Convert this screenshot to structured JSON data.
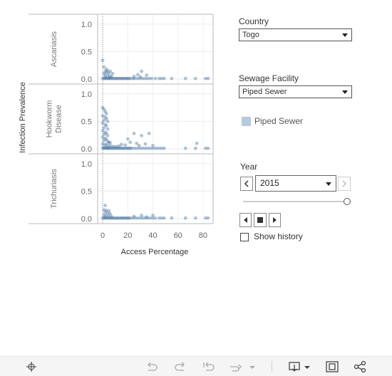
{
  "chart_data": {
    "type": "scatter",
    "xlabel": "Access Percentage",
    "ylabel": "Infection Prevalence",
    "xlim": [
      -4,
      88
    ],
    "ylim": [
      0,
      1.05
    ],
    "x_ticks": [
      "0",
      "20",
      "40",
      "60",
      "80"
    ],
    "x_tick_values": [
      0,
      20,
      40,
      60,
      80
    ],
    "y_ticks": [
      "0.0",
      "0.5",
      "1.0"
    ],
    "y_tick_values": [
      0,
      0.5,
      1.0
    ],
    "grid": true,
    "reference_line_x": 0,
    "point_color": "#4e79a7",
    "rows": [
      {
        "label_lines": [
          "Ascariasis"
        ],
        "points": [
          [
            0,
            0.34
          ],
          [
            1,
            0.22
          ],
          [
            3,
            0.18
          ],
          [
            2,
            0.14
          ],
          [
            4,
            0.15
          ],
          [
            6,
            0.14
          ],
          [
            3,
            0.12
          ],
          [
            1,
            0.1
          ],
          [
            5,
            0.1
          ],
          [
            8,
            0.1
          ],
          [
            2,
            0.07
          ],
          [
            4,
            0.06
          ],
          [
            7,
            0.05
          ],
          [
            6,
            0.04
          ],
          [
            2,
            0.03
          ],
          [
            5,
            0.02
          ],
          [
            0,
            0.01
          ],
          [
            1,
            0.01
          ],
          [
            2,
            0.01
          ],
          [
            3,
            0.01
          ],
          [
            4,
            0.01
          ],
          [
            5,
            0.01
          ],
          [
            6,
            0.01
          ],
          [
            7,
            0.01
          ],
          [
            8,
            0.01
          ],
          [
            9,
            0.01
          ],
          [
            10,
            0.01
          ],
          [
            11,
            0.01
          ],
          [
            12,
            0.01
          ],
          [
            13,
            0.01
          ],
          [
            14,
            0.01
          ],
          [
            15,
            0.01
          ],
          [
            16,
            0.01
          ],
          [
            17,
            0.01
          ],
          [
            18,
            0.01
          ],
          [
            19,
            0.01
          ],
          [
            20,
            0.01
          ],
          [
            21,
            0.01
          ],
          [
            22,
            0.01
          ],
          [
            24,
            0.01
          ],
          [
            25,
            0.01
          ],
          [
            27,
            0.01
          ],
          [
            29,
            0.01
          ],
          [
            31,
            0.01
          ],
          [
            33,
            0.01
          ],
          [
            35,
            0.01
          ],
          [
            37,
            0.01
          ],
          [
            39,
            0.01
          ],
          [
            42,
            0.01
          ],
          [
            45,
            0.01
          ],
          [
            47,
            0.01
          ],
          [
            49,
            0.01
          ],
          [
            55,
            0.01
          ],
          [
            66,
            0.01
          ],
          [
            74,
            0.01
          ],
          [
            82,
            0.01
          ],
          [
            84,
            0.01
          ],
          [
            25,
            0.05
          ],
          [
            31,
            0.14
          ],
          [
            28,
            0.08
          ],
          [
            35,
            0.07
          ],
          [
            30,
            0.04
          ]
        ]
      },
      {
        "label_lines": [
          "Hookworm",
          "Disease"
        ],
        "points": [
          [
            0,
            0.75
          ],
          [
            1,
            0.72
          ],
          [
            2,
            0.68
          ],
          [
            3,
            0.64
          ],
          [
            0,
            0.6
          ],
          [
            2,
            0.58
          ],
          [
            3,
            0.55
          ],
          [
            1,
            0.52
          ],
          [
            4,
            0.5
          ],
          [
            0,
            0.47
          ],
          [
            2,
            0.44
          ],
          [
            3,
            0.42
          ],
          [
            1,
            0.38
          ],
          [
            4,
            0.36
          ],
          [
            0,
            0.33
          ],
          [
            2,
            0.3
          ],
          [
            3,
            0.28
          ],
          [
            1,
            0.26
          ],
          [
            4,
            0.24
          ],
          [
            0,
            0.21
          ],
          [
            2,
            0.19
          ],
          [
            3,
            0.17
          ],
          [
            1,
            0.15
          ],
          [
            4,
            0.13
          ],
          [
            5,
            0.12
          ],
          [
            6,
            0.11
          ],
          [
            0,
            0.09
          ],
          [
            2,
            0.08
          ],
          [
            3,
            0.07
          ],
          [
            5,
            0.06
          ],
          [
            7,
            0.05
          ],
          [
            9,
            0.04
          ],
          [
            11,
            0.04
          ],
          [
            13,
            0.05
          ],
          [
            15,
            0.08
          ],
          [
            1,
            0.03
          ],
          [
            3,
            0.02
          ],
          [
            5,
            0.02
          ],
          [
            0,
            0.01
          ],
          [
            1,
            0.01
          ],
          [
            2,
            0.01
          ],
          [
            3,
            0.01
          ],
          [
            4,
            0.01
          ],
          [
            5,
            0.01
          ],
          [
            6,
            0.01
          ],
          [
            7,
            0.01
          ],
          [
            8,
            0.01
          ],
          [
            9,
            0.01
          ],
          [
            10,
            0.01
          ],
          [
            11,
            0.01
          ],
          [
            12,
            0.01
          ],
          [
            13,
            0.01
          ],
          [
            14,
            0.01
          ],
          [
            15,
            0.01
          ],
          [
            16,
            0.01
          ],
          [
            17,
            0.01
          ],
          [
            18,
            0.01
          ],
          [
            19,
            0.01
          ],
          [
            20,
            0.01
          ],
          [
            21,
            0.01
          ],
          [
            22,
            0.01
          ],
          [
            23,
            0.01
          ],
          [
            25,
            0.01
          ],
          [
            27,
            0.01
          ],
          [
            29,
            0.01
          ],
          [
            31,
            0.01
          ],
          [
            33,
            0.01
          ],
          [
            35,
            0.01
          ],
          [
            37,
            0.01
          ],
          [
            39,
            0.01
          ],
          [
            41,
            0.01
          ],
          [
            43,
            0.01
          ],
          [
            45,
            0.01
          ],
          [
            47,
            0.01
          ],
          [
            49,
            0.01
          ],
          [
            66,
            0.01
          ],
          [
            74,
            0.01
          ],
          [
            82,
            0.01
          ],
          [
            84,
            0.01
          ],
          [
            25,
            0.28
          ],
          [
            37,
            0.28
          ],
          [
            31,
            0.24
          ],
          [
            20,
            0.18
          ],
          [
            22,
            0.12
          ],
          [
            27,
            0.1
          ],
          [
            34,
            0.09
          ],
          [
            40,
            0.06
          ],
          [
            75,
            0.1
          ],
          [
            18,
            0.07
          ],
          [
            29,
            0.06
          ]
        ]
      },
      {
        "label_lines": [
          "Trichuriasis"
        ],
        "points": [
          [
            2,
            0.24
          ],
          [
            1,
            0.16
          ],
          [
            3,
            0.15
          ],
          [
            5,
            0.14
          ],
          [
            2,
            0.12
          ],
          [
            4,
            0.1
          ],
          [
            6,
            0.09
          ],
          [
            1,
            0.07
          ],
          [
            3,
            0.06
          ],
          [
            5,
            0.05
          ],
          [
            7,
            0.04
          ],
          [
            2,
            0.03
          ],
          [
            0,
            0.01
          ],
          [
            1,
            0.01
          ],
          [
            2,
            0.01
          ],
          [
            3,
            0.01
          ],
          [
            4,
            0.01
          ],
          [
            5,
            0.01
          ],
          [
            6,
            0.01
          ],
          [
            7,
            0.01
          ],
          [
            8,
            0.01
          ],
          [
            9,
            0.01
          ],
          [
            10,
            0.01
          ],
          [
            11,
            0.01
          ],
          [
            12,
            0.01
          ],
          [
            13,
            0.01
          ],
          [
            14,
            0.01
          ],
          [
            15,
            0.01
          ],
          [
            16,
            0.01
          ],
          [
            17,
            0.01
          ],
          [
            18,
            0.01
          ],
          [
            19,
            0.01
          ],
          [
            20,
            0.01
          ],
          [
            21,
            0.01
          ],
          [
            22,
            0.01
          ],
          [
            24,
            0.01
          ],
          [
            26,
            0.01
          ],
          [
            28,
            0.01
          ],
          [
            30,
            0.01
          ],
          [
            32,
            0.01
          ],
          [
            34,
            0.01
          ],
          [
            36,
            0.01
          ],
          [
            38,
            0.01
          ],
          [
            40,
            0.01
          ],
          [
            42,
            0.01
          ],
          [
            45,
            0.01
          ],
          [
            47,
            0.01
          ],
          [
            49,
            0.01
          ],
          [
            55,
            0.01
          ],
          [
            66,
            0.01
          ],
          [
            74,
            0.01
          ],
          [
            82,
            0.01
          ],
          [
            84,
            0.01
          ],
          [
            31,
            0.06
          ],
          [
            40,
            0.06
          ],
          [
            25,
            0.04
          ],
          [
            35,
            0.03
          ]
        ]
      }
    ]
  },
  "filters": {
    "country_label": "Country",
    "country_value": "Togo",
    "sewage_label": "Sewage Facility",
    "sewage_value": "Piped Sewer",
    "legend_item": "Piped Sewer",
    "legend_color": "#b7c9de"
  },
  "year": {
    "label": "Year",
    "value": "2015",
    "slider_fraction": 1.0,
    "show_history_label": "Show history",
    "show_history_checked": false
  },
  "toolbar": {
    "icons": [
      "move-icon",
      "undo-icon",
      "redo-icon",
      "revert-icon",
      "refresh-icon",
      "pause-dropdown-icon",
      "download-icon",
      "fullscreen-icon",
      "share-icon"
    ]
  }
}
